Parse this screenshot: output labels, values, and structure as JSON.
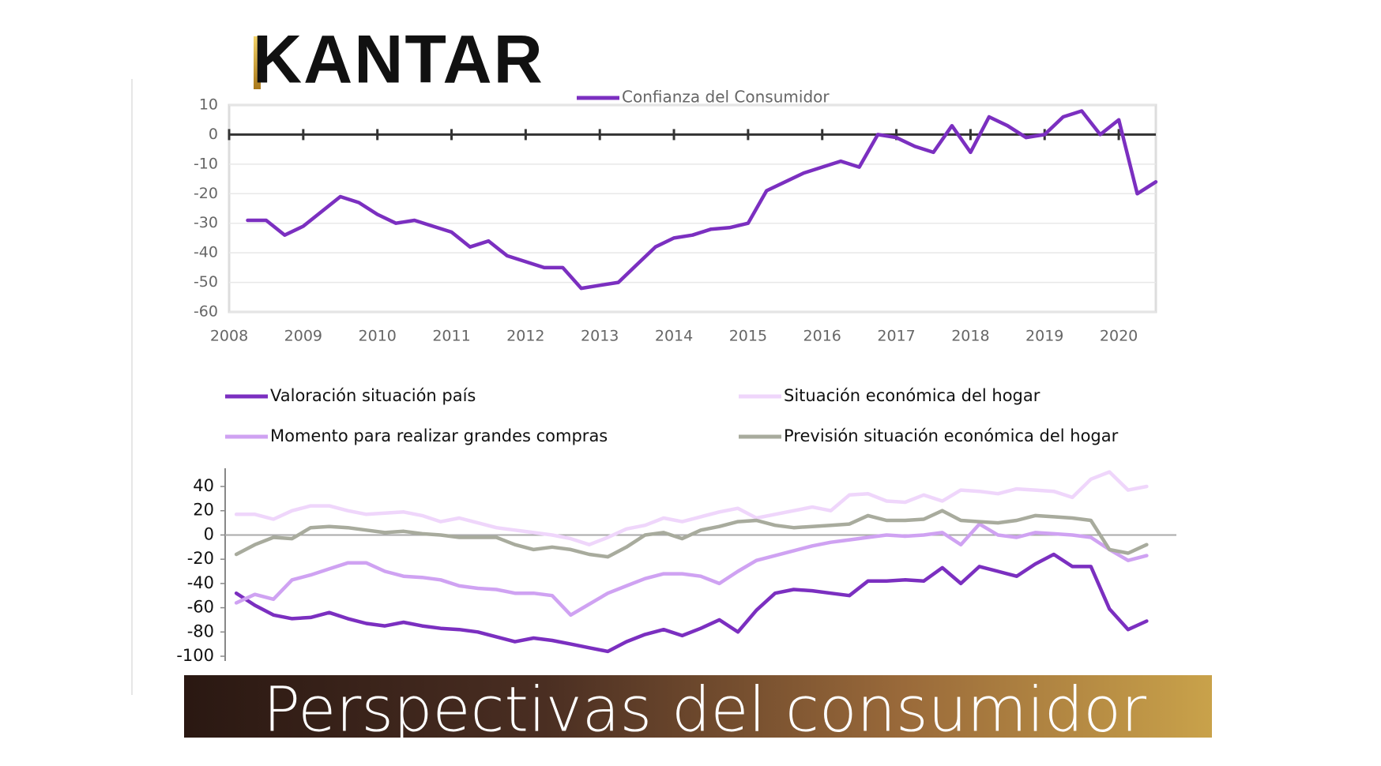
{
  "logo": "KANTAR",
  "banner": "Perspectivas del consumidor",
  "chart_data": [
    {
      "type": "line",
      "x": [
        2008.25,
        2008.5,
        2008.75,
        2009,
        2009.25,
        2009.5,
        2009.75,
        2010,
        2010.25,
        2010.5,
        2010.75,
        2011,
        2011.25,
        2011.5,
        2011.75,
        2012,
        2012.25,
        2012.5,
        2012.75,
        2013,
        2013.25,
        2013.5,
        2013.75,
        2014,
        2014.25,
        2014.5,
        2014.75,
        2015,
        2015.25,
        2015.5,
        2015.75,
        2016,
        2016.25,
        2016.5,
        2016.75,
        2017,
        2017.25,
        2017.5,
        2017.75,
        2018,
        2018.25,
        2018.5,
        2018.75,
        2019,
        2019.25,
        2019.5,
        2019.75,
        2020,
        2020.25,
        2020.5
      ],
      "xlim": [
        2008,
        2020.5
      ],
      "xticks": [
        2008,
        2009,
        2010,
        2011,
        2012,
        2013,
        2014,
        2015,
        2016,
        2017,
        2018,
        2019,
        2020
      ],
      "ylim": [
        -60,
        10
      ],
      "yticks": [
        -60,
        -50,
        -40,
        -30,
        -20,
        -10,
        0,
        10
      ],
      "grid": true,
      "series": [
        {
          "name": "Confianza del Consumidor",
          "color": "#7b2fc0",
          "values": [
            -29,
            -29,
            -34,
            -31,
            -26,
            -21,
            -23,
            -27,
            -30,
            -29,
            -31,
            -33,
            -38,
            -36,
            -41,
            -43,
            -45,
            -45,
            -52,
            -51,
            -50,
            -44,
            -38,
            -35,
            -34,
            -32,
            -31.5,
            -30,
            -19,
            -16,
            -13,
            -11,
            -9,
            -11,
            0,
            -1,
            -4,
            -6,
            3,
            -6,
            6,
            3,
            -1,
            0,
            6,
            8,
            0,
            5,
            -20,
            -16
          ]
        }
      ]
    },
    {
      "type": "line",
      "x": [
        2008.25,
        2008.5,
        2008.75,
        2009,
        2009.25,
        2009.5,
        2009.75,
        2010,
        2010.25,
        2010.5,
        2010.75,
        2011,
        2011.25,
        2011.5,
        2011.75,
        2012,
        2012.25,
        2012.5,
        2012.75,
        2013,
        2013.25,
        2013.5,
        2013.75,
        2014,
        2014.25,
        2014.5,
        2014.75,
        2015,
        2015.25,
        2015.5,
        2015.75,
        2016,
        2016.25,
        2016.5,
        2016.75,
        2017,
        2017.25,
        2017.5,
        2017.75,
        2018,
        2018.25,
        2018.5,
        2018.75,
        2019,
        2019.25,
        2019.5,
        2019.75,
        2020,
        2020.25,
        2020.5
      ],
      "xlim": [
        2008.1,
        2020.9
      ],
      "ylim": [
        -100,
        55
      ],
      "yticks": [
        -100,
        -80,
        -60,
        -40,
        -20,
        0,
        20,
        40
      ],
      "grid": false,
      "series": [
        {
          "name": "Valoración situación país",
          "color": "#7b2fc0",
          "values": [
            -48,
            -58,
            -66,
            -69,
            -68,
            -64,
            -69,
            -73,
            -75,
            -72,
            -75,
            -77,
            -78,
            -80,
            -84,
            -88,
            -85,
            -87,
            -90,
            -93,
            -96,
            -88,
            -82,
            -78,
            -83,
            -77,
            -70,
            -80,
            -62,
            -48,
            -45,
            -46,
            -48,
            -50,
            -38,
            -38,
            -37,
            -38,
            -27,
            -40,
            -26,
            -30,
            -34,
            -24,
            -16,
            -26,
            -26,
            -61,
            -78,
            -71
          ]
        },
        {
          "name": "Situación económica del hogar",
          "color": "#efd6fb",
          "values": [
            17,
            17,
            13,
            20,
            24,
            24,
            20,
            17,
            18,
            19,
            16,
            11,
            14,
            10,
            6,
            4,
            2,
            0,
            -3,
            -8,
            -2,
            5,
            8,
            14,
            11,
            15,
            19,
            22,
            14,
            17,
            20,
            23,
            20,
            33,
            34,
            28,
            27,
            33,
            28,
            37,
            36,
            34,
            38,
            37,
            36,
            31,
            46,
            52,
            37,
            40
          ]
        },
        {
          "name": "Momento para realizar grandes compras",
          "color": "#cfa2f2",
          "values": [
            -56,
            -49,
            -53,
            -37,
            -33,
            -28,
            -23,
            -23,
            -30,
            -34,
            -35,
            -37,
            -42,
            -44,
            -45,
            -48,
            -48,
            -50,
            -66,
            -57,
            -48,
            -42,
            -36,
            -32,
            -32,
            -34,
            -40,
            -30,
            -21,
            -17,
            -13,
            -9,
            -6,
            -4,
            -2,
            0,
            -1,
            0,
            2,
            -8,
            9,
            0,
            -2,
            2,
            1,
            0,
            -2,
            -12,
            -21,
            -17
          ]
        },
        {
          "name": "Previsión situación económica del hogar",
          "color": "#a8ab9d",
          "values": [
            -16,
            -8,
            -2,
            -3,
            6,
            7,
            6,
            4,
            2,
            3,
            1,
            0,
            -2,
            -2,
            -2,
            -8,
            -12,
            -10,
            -12,
            -16,
            -18,
            -10,
            0,
            2,
            -3,
            4,
            7,
            11,
            12,
            8,
            6,
            7,
            8,
            9,
            16,
            12,
            12,
            13,
            20,
            12,
            11,
            10,
            12,
            16,
            15,
            14,
            12,
            -12,
            -15,
            -8
          ]
        }
      ]
    }
  ]
}
